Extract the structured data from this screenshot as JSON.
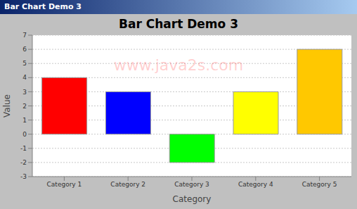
{
  "chart_data": {
    "type": "bar",
    "title": "Bar Chart Demo 3",
    "x_label": "Category",
    "y_label": "Value",
    "annotations": [
      "www.java2s.com"
    ],
    "categories": [
      "Category 1",
      "Category 2",
      "Category 3",
      "Category 4",
      "Category 5"
    ],
    "values": [
      4,
      3,
      -2,
      3,
      6
    ],
    "colors": [
      "#ff0000",
      "#0000ff",
      "#00ff00",
      "#ffff00",
      "#ffc800"
    ],
    "ylim": [
      -3,
      7
    ],
    "yticks": [
      -3,
      -2,
      -1,
      0,
      1,
      2,
      3,
      4,
      5,
      6,
      7
    ],
    "grid": true
  }
}
